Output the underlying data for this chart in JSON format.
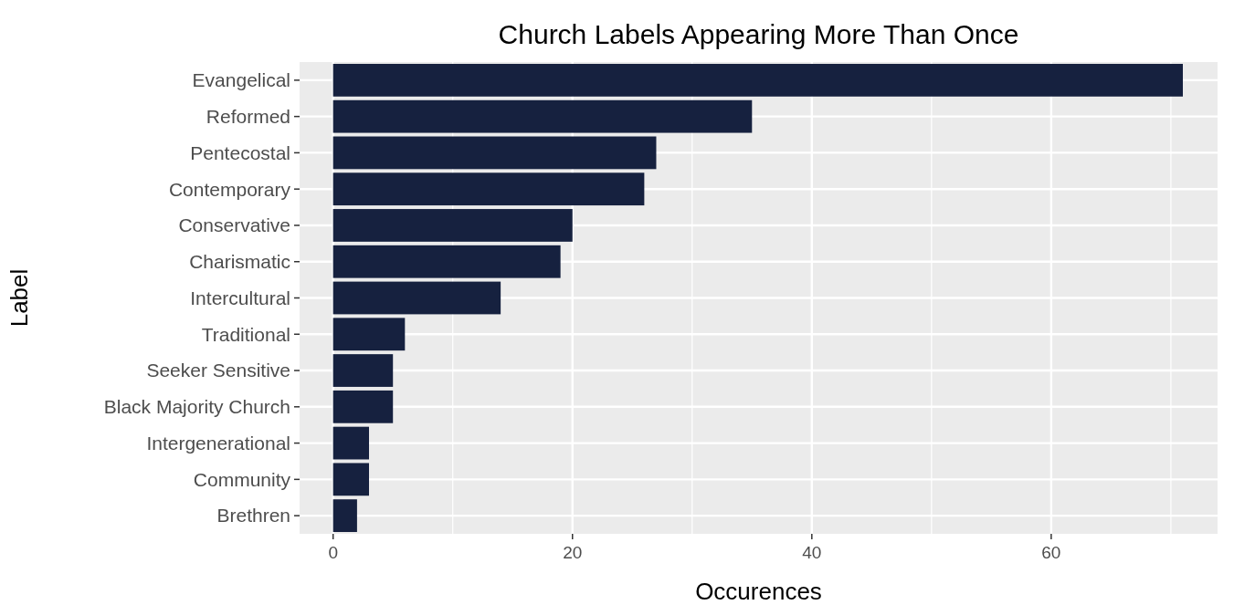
{
  "chart_data": {
    "type": "bar",
    "orientation": "horizontal",
    "title": "Church Labels Appearing More Than Once",
    "xlabel": "Occurences",
    "ylabel": "Label",
    "categories": [
      "Evangelical",
      "Reformed",
      "Pentecostal",
      "Contemporary",
      "Conservative",
      "Charismatic",
      "Intercultural",
      "Traditional",
      "Seeker Sensitive",
      "Black Majority Church",
      "Intergenerational",
      "Community",
      "Brethren"
    ],
    "values": [
      71,
      35,
      27,
      26,
      20,
      19,
      14,
      6,
      5,
      5,
      3,
      3,
      2
    ],
    "color": "#16213f",
    "xlim": [
      -2.8,
      73.9
    ],
    "xticks": [
      0,
      {
        "value": 10,
        "label": null
      },
      20,
      {
        "value": 30,
        "label": null
      },
      40,
      {
        "value": 50,
        "label": null
      },
      60,
      {
        "value": 70,
        "label": null
      }
    ],
    "grid": true
  }
}
